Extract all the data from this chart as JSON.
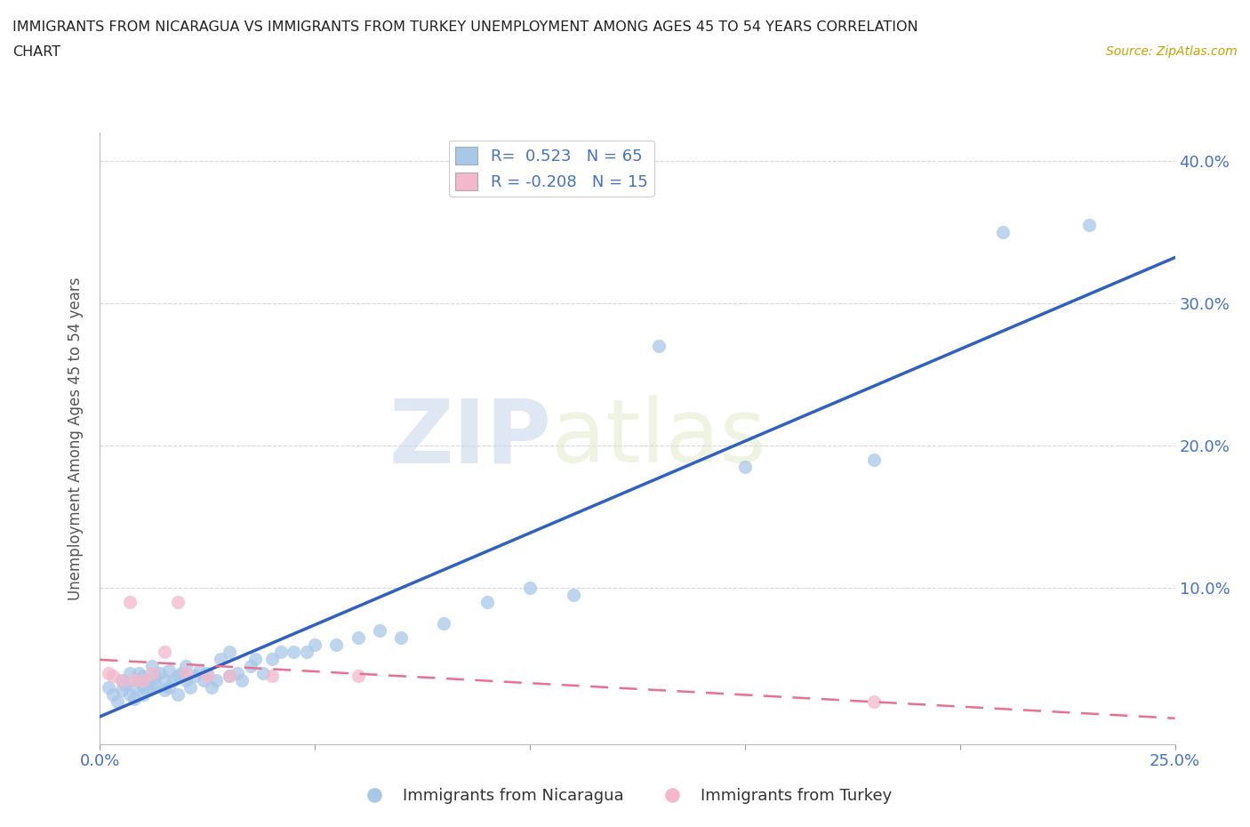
{
  "title_line1": "IMMIGRANTS FROM NICARAGUA VS IMMIGRANTS FROM TURKEY UNEMPLOYMENT AMONG AGES 45 TO 54 YEARS CORRELATION",
  "title_line2": "CHART",
  "source": "Source: ZipAtlas.com",
  "ylabel": "Unemployment Among Ages 45 to 54 years",
  "xlim": [
    0.0,
    0.25
  ],
  "ylim": [
    -0.01,
    0.42
  ],
  "xticks": [
    0.0,
    0.05,
    0.1,
    0.15,
    0.2,
    0.25
  ],
  "yticks": [
    0.1,
    0.2,
    0.3,
    0.4
  ],
  "ytick_labels": [
    "10.0%",
    "20.0%",
    "30.0%",
    "40.0%"
  ],
  "xtick_labels": [
    "0.0%",
    "",
    "",
    "",
    "",
    "25.0%"
  ],
  "nicaragua_color": "#a8c8e8",
  "turkey_color": "#f4b8cc",
  "nicaragua_line_color": "#3060c0",
  "turkey_line_color": "#e87090",
  "R_nicaragua": 0.523,
  "N_nicaragua": 65,
  "R_turkey": -0.208,
  "N_turkey": 15,
  "nicaragua_x": [
    0.002,
    0.003,
    0.004,
    0.005,
    0.005,
    0.006,
    0.007,
    0.007,
    0.008,
    0.008,
    0.009,
    0.009,
    0.01,
    0.01,
    0.01,
    0.011,
    0.011,
    0.012,
    0.012,
    0.013,
    0.013,
    0.014,
    0.015,
    0.015,
    0.016,
    0.016,
    0.017,
    0.018,
    0.018,
    0.019,
    0.02,
    0.02,
    0.021,
    0.022,
    0.023,
    0.024,
    0.025,
    0.026,
    0.027,
    0.028,
    0.03,
    0.03,
    0.032,
    0.033,
    0.035,
    0.036,
    0.038,
    0.04,
    0.042,
    0.045,
    0.048,
    0.05,
    0.055,
    0.06,
    0.065,
    0.07,
    0.08,
    0.09,
    0.1,
    0.11,
    0.13,
    0.15,
    0.18,
    0.21,
    0.23
  ],
  "nicaragua_y": [
    0.03,
    0.025,
    0.02,
    0.035,
    0.028,
    0.032,
    0.04,
    0.025,
    0.03,
    0.022,
    0.035,
    0.04,
    0.025,
    0.03,
    0.038,
    0.035,
    0.028,
    0.03,
    0.045,
    0.032,
    0.038,
    0.04,
    0.028,
    0.035,
    0.03,
    0.042,
    0.035,
    0.038,
    0.025,
    0.04,
    0.035,
    0.045,
    0.03,
    0.038,
    0.042,
    0.035,
    0.04,
    0.03,
    0.035,
    0.05,
    0.038,
    0.055,
    0.04,
    0.035,
    0.045,
    0.05,
    0.04,
    0.05,
    0.055,
    0.055,
    0.055,
    0.06,
    0.06,
    0.065,
    0.07,
    0.065,
    0.075,
    0.09,
    0.1,
    0.095,
    0.27,
    0.185,
    0.19,
    0.35,
    0.355
  ],
  "turkey_x": [
    0.002,
    0.003,
    0.005,
    0.007,
    0.008,
    0.01,
    0.012,
    0.015,
    0.018,
    0.02,
    0.025,
    0.03,
    0.04,
    0.06,
    0.18
  ],
  "turkey_y": [
    0.04,
    0.038,
    0.035,
    0.09,
    0.035,
    0.035,
    0.04,
    0.055,
    0.09,
    0.04,
    0.038,
    0.038,
    0.038,
    0.038,
    0.02
  ],
  "watermark_zip": "ZIP",
  "watermark_atlas": "atlas",
  "background_color": "#ffffff",
  "grid_color": "#d8d8d8"
}
